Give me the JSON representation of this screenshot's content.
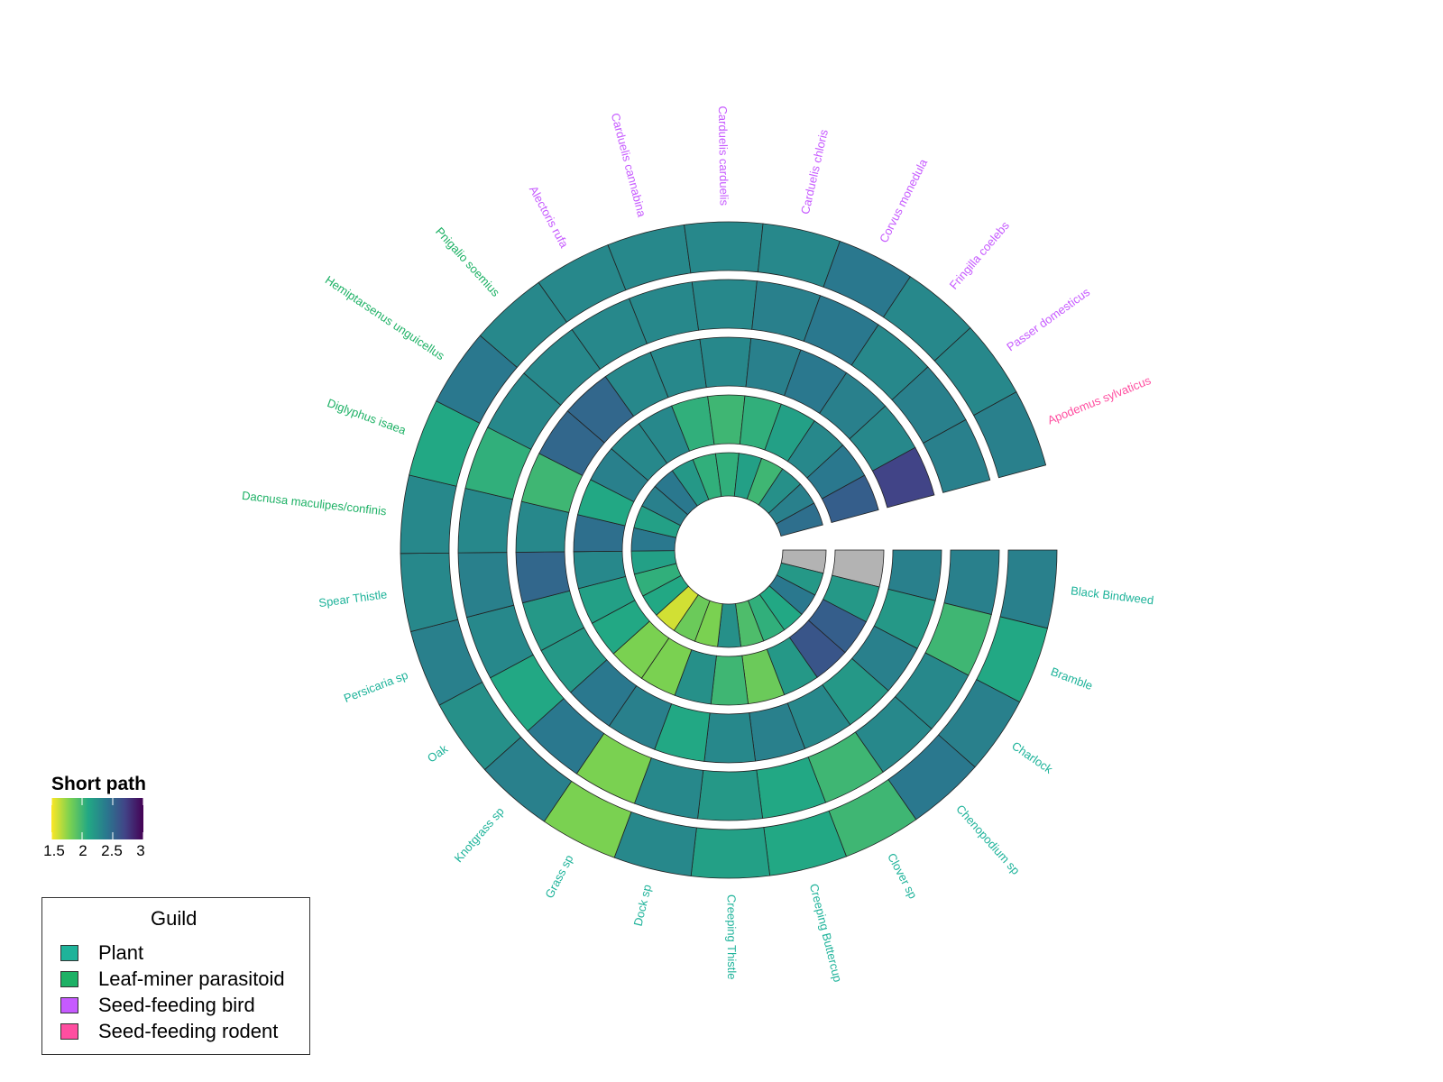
{
  "chart_data": {
    "type": "radial-heatmap",
    "rings": 5,
    "colorbar": {
      "title": "Short path",
      "min": 1.5,
      "max": 3,
      "ticks": [
        "1.5",
        "2",
        "2.5",
        "3"
      ],
      "stops": [
        "#fde725",
        "#7ad151",
        "#22a884",
        "#2a788e",
        "#414487",
        "#440154"
      ]
    },
    "guild_legend": {
      "title": "Guild",
      "items": [
        {
          "label": "Plant",
          "color": "#1eb39a"
        },
        {
          "label": "Leaf-miner parasitoid",
          "color": "#1db165"
        },
        {
          "label": "Seed-feeding bird",
          "color": "#c65aff"
        },
        {
          "label": "Seed-feeding rodent",
          "color": "#ff4ea0"
        }
      ]
    },
    "species": [
      {
        "name": "Black Bindweed",
        "guild": "Plant",
        "label_color": "#1eb39a"
      },
      {
        "name": "Bramble",
        "guild": "Plant",
        "label_color": "#1eb39a"
      },
      {
        "name": "Charlock",
        "guild": "Plant",
        "label_color": "#1eb39a"
      },
      {
        "name": "Chenopodium sp",
        "guild": "Plant",
        "label_color": "#1eb39a"
      },
      {
        "name": "Clover sp",
        "guild": "Plant",
        "label_color": "#1eb39a"
      },
      {
        "name": "Creeping Buttercup",
        "guild": "Plant",
        "label_color": "#1eb39a"
      },
      {
        "name": "Creeping Thistle",
        "guild": "Plant",
        "label_color": "#1eb39a"
      },
      {
        "name": "Dock sp",
        "guild": "Plant",
        "label_color": "#1eb39a"
      },
      {
        "name": "Grass sp",
        "guild": "Plant",
        "label_color": "#1eb39a"
      },
      {
        "name": "Knotgrass sp",
        "guild": "Plant",
        "label_color": "#1eb39a"
      },
      {
        "name": "Oak",
        "guild": "Plant",
        "label_color": "#1eb39a"
      },
      {
        "name": "Persicaria sp",
        "guild": "Plant",
        "label_color": "#1eb39a"
      },
      {
        "name": "Spear Thistle",
        "guild": "Plant",
        "label_color": "#1eb39a"
      },
      {
        "name": "Dacnusa maculipes/confinis",
        "guild": "Leaf-miner parasitoid",
        "label_color": "#1db165"
      },
      {
        "name": "Diglyphus isaea",
        "guild": "Leaf-miner parasitoid",
        "label_color": "#1db165"
      },
      {
        "name": "Hemiptarsenus unguicellus",
        "guild": "Leaf-miner parasitoid",
        "label_color": "#1db165"
      },
      {
        "name": "Pnigalio soemius",
        "guild": "Leaf-miner parasitoid",
        "label_color": "#1db165"
      },
      {
        "name": "Alectoris rufa",
        "guild": "Seed-feeding bird",
        "label_color": "#c65aff"
      },
      {
        "name": "Carduelis cannabina",
        "guild": "Seed-feeding bird",
        "label_color": "#c65aff"
      },
      {
        "name": "Carduelis carduelis",
        "guild": "Seed-feeding bird",
        "label_color": "#c65aff"
      },
      {
        "name": "Carduelis chloris",
        "guild": "Seed-feeding bird",
        "label_color": "#c65aff"
      },
      {
        "name": "Corvus monedula",
        "guild": "Seed-feeding bird",
        "label_color": "#c65aff"
      },
      {
        "name": "Fringilla coelebs",
        "guild": "Seed-feeding bird",
        "label_color": "#c65aff"
      },
      {
        "name": "Passer domesticus",
        "guild": "Seed-feeding bird",
        "label_color": "#c65aff"
      },
      {
        "name": "Apodemus sylvaticus",
        "guild": "Seed-feeding rodent",
        "label_color": "#ff4ea0"
      }
    ],
    "values": [
      [
        null,
        null,
        2.35,
        2.35,
        2.35
      ],
      [
        2.2,
        2.2,
        2.2,
        2.0,
        2.1
      ],
      [
        2.4,
        2.55,
        2.35,
        2.3,
        2.35
      ],
      [
        2.1,
        2.6,
        2.2,
        2.3,
        2.4
      ],
      [
        2.05,
        2.2,
        2.3,
        2.0,
        2.0
      ],
      [
        1.95,
        1.85,
        2.35,
        2.1,
        2.1
      ],
      [
        2.25,
        2.0,
        2.3,
        2.2,
        2.15
      ],
      [
        1.8,
        2.25,
        2.1,
        2.3,
        2.3
      ],
      [
        1.85,
        1.8,
        2.35,
        1.8,
        1.8
      ],
      [
        1.6,
        1.8,
        2.4,
        2.4,
        2.35
      ],
      [
        2.1,
        2.1,
        2.2,
        2.1,
        2.25
      ],
      [
        2.05,
        2.15,
        2.2,
        2.3,
        2.35
      ],
      [
        2.15,
        2.3,
        2.5,
        2.35,
        2.3
      ],
      [
        2.4,
        2.45,
        2.3,
        2.3,
        2.3
      ],
      [
        2.15,
        2.1,
        2.0,
        2.05,
        2.1
      ],
      [
        2.35,
        2.35,
        2.5,
        2.3,
        2.4
      ],
      [
        2.4,
        2.3,
        2.5,
        2.3,
        2.3
      ],
      [
        2.2,
        2.3,
        2.3,
        2.3,
        2.3
      ],
      [
        2.05,
        2.05,
        2.3,
        2.3,
        2.3
      ],
      [
        2.05,
        2.0,
        2.3,
        2.3,
        2.3
      ],
      [
        2.15,
        2.05,
        2.35,
        2.35,
        2.3
      ],
      [
        2.0,
        2.15,
        2.4,
        2.4,
        2.4
      ],
      [
        2.25,
        2.3,
        2.35,
        2.3,
        2.3
      ],
      [
        2.35,
        2.4,
        2.3,
        2.35,
        2.3
      ],
      [
        2.45,
        2.55,
        2.7,
        2.35,
        2.35
      ]
    ]
  }
}
